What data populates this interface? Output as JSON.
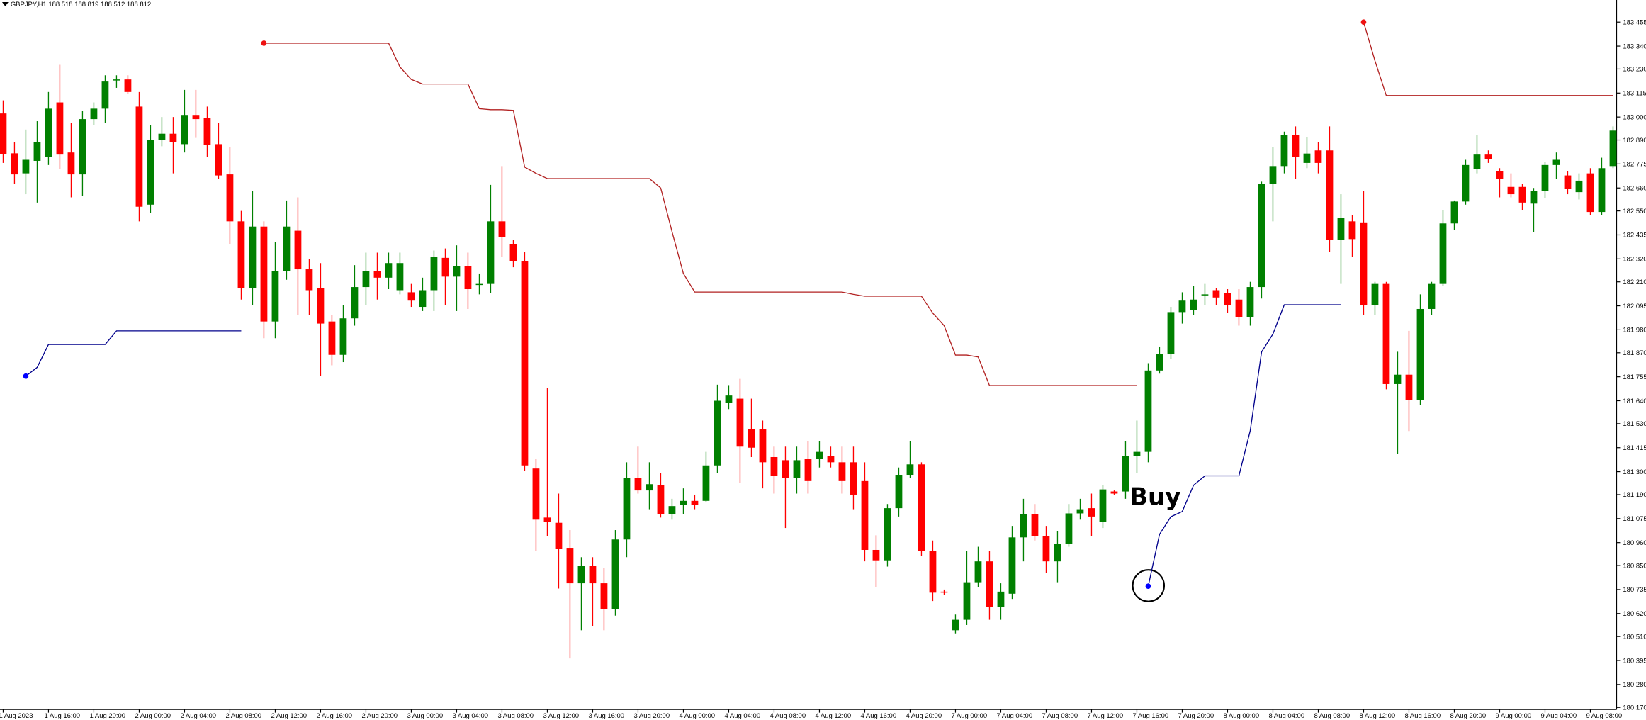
{
  "chart_data": {
    "type": "candlestick",
    "title": "GBPJPY,H1  188.518 188.819 188.512 188.812",
    "annotation": "Buy",
    "up_color": "#008000",
    "down_color": "#ff0000",
    "grid": false,
    "ylim": [
      180.16,
      183.561
    ],
    "yticks": [
      183.455,
      {
        "value": 183.34,
        "label": "183.340"
      },
      {
        "value": 183.23,
        "label": "183.230"
      },
      183.115,
      {
        "value": 183.0,
        "label": "183.000"
      },
      {
        "value": 182.89,
        "label": "182.890"
      },
      182.775,
      {
        "value": 182.66,
        "label": "182.660"
      },
      {
        "value": 182.55,
        "label": "182.550"
      },
      182.435,
      {
        "value": 182.32,
        "label": "182.320"
      },
      {
        "value": 182.21,
        "label": "182.210"
      },
      182.095,
      {
        "value": 181.98,
        "label": "181.980"
      },
      {
        "value": 181.87,
        "label": "181.870"
      },
      181.755,
      {
        "value": 181.64,
        "label": "181.640"
      },
      {
        "value": 181.53,
        "label": "181.530"
      },
      181.415,
      {
        "value": 181.3,
        "label": "181.300"
      },
      {
        "value": 181.19,
        "label": "181.190"
      },
      181.075,
      {
        "value": 180.96,
        "label": "180.960"
      },
      {
        "value": 180.85,
        "label": "180.850"
      },
      180.735,
      {
        "value": 180.62,
        "label": "180.620"
      },
      {
        "value": 180.51,
        "label": "180.510"
      },
      180.395,
      {
        "value": 180.28,
        "label": "180.280"
      },
      {
        "value": 180.17,
        "label": "180.170"
      }
    ],
    "categories": [
      "1 Aug 2023",
      null,
      null,
      null,
      "1 Aug 16:00",
      null,
      null,
      null,
      "1 Aug 20:00",
      null,
      null,
      null,
      "2 Aug 00:00",
      null,
      null,
      null,
      "2 Aug 04:00",
      null,
      null,
      null,
      "2 Aug 08:00",
      null,
      null,
      null,
      "2 Aug 12:00",
      null,
      null,
      null,
      "2 Aug 16:00",
      null,
      null,
      null,
      "2 Aug 20:00",
      null,
      null,
      null,
      "3 Aug 00:00",
      null,
      null,
      null,
      "3 Aug 04:00",
      null,
      null,
      null,
      "3 Aug 08:00",
      null,
      null,
      null,
      "3 Aug 12:00",
      null,
      null,
      null,
      "3 Aug 16:00",
      null,
      null,
      null,
      "3 Aug 20:00",
      null,
      null,
      null,
      "4 Aug 00:00",
      null,
      null,
      null,
      "4 Aug 04:00",
      null,
      null,
      null,
      "4 Aug 08:00",
      null,
      null,
      null,
      "4 Aug 12:00",
      null,
      null,
      null,
      "4 Aug 16:00",
      null,
      null,
      null,
      "4 Aug 20:00",
      null,
      null,
      null,
      "7 Aug 00:00",
      null,
      null,
      null,
      "7 Aug 04:00",
      null,
      null,
      null,
      "7 Aug 08:00",
      null,
      null,
      null,
      "7 Aug 12:00",
      null,
      null,
      null,
      "7 Aug 16:00",
      null,
      null,
      null,
      "7 Aug 20:00",
      null,
      null,
      null,
      "8 Aug 00:00",
      null,
      null,
      null,
      "8 Aug 04:00",
      null,
      null,
      null,
      "8 Aug 08:00",
      null,
      null,
      null,
      "8 Aug 12:00",
      null,
      null,
      null,
      "8 Aug 16:00",
      null,
      null,
      null,
      "8 Aug 20:00",
      null,
      null,
      null,
      "9 Aug 00:00",
      null,
      null,
      null,
      "9 Aug 04:00",
      null,
      null,
      null,
      "9 Aug 08:00",
      null,
      null
    ],
    "open": [
      183.017,
      182.826,
      182.73,
      182.79,
      182.81,
      183.07,
      182.83,
      182.725,
      182.99,
      183.04,
      183.175,
      183.18,
      183.05,
      182.58,
      182.89,
      182.92,
      182.87,
      183.01,
      182.995,
      182.87,
      182.725,
      182.5,
      182.18,
      182.475,
      182.02,
      182.26,
      182.455,
      182.27,
      182.18,
      182.02,
      181.86,
      182.035,
      182.185,
      182.26,
      182.23,
      182.17,
      182.16,
      182.09,
      182.17,
      182.325,
      182.235,
      182.285,
      182.195,
      182.2,
      182.5,
      182.39,
      182.31,
      181.315,
      181.08,
      181.055,
      180.935,
      180.765,
      180.85,
      180.765,
      180.64,
      180.975,
      181.27,
      181.21,
      181.235,
      181.095,
      181.14,
      181.16,
      181.16,
      181.33,
      181.63,
      181.65,
      181.505,
      181.505,
      181.37,
      181.355,
      181.27,
      181.36,
      181.36,
      181.375,
      181.345,
      181.345,
      181.255,
      180.925,
      180.875,
      181.125,
      181.285,
      181.335,
      180.92,
      180.725,
      180.54,
      180.59,
      180.77,
      180.87,
      180.65,
      180.715,
      180.985,
      181.095,
      180.99,
      180.87,
      180.955,
      181.1,
      181.125,
      181.06,
      181.205,
      181.205,
      181.375,
      181.395,
      181.785,
      181.865,
      182.065,
      182.075,
      182.15,
      182.17,
      182.155,
      182.125,
      182.04,
      182.185,
      182.68,
      182.765,
      182.915,
      182.78,
      182.84,
      182.84,
      182.41,
      182.5,
      182.495,
      182.1,
      182.2,
      181.72,
      181.765,
      181.645,
      182.08,
      182.2,
      182.49,
      182.595,
      182.75,
      182.82,
      182.74,
      182.665,
      182.665,
      182.585,
      182.645,
      182.77,
      182.72,
      182.64,
      182.73,
      182.545,
      182.765
    ],
    "high": [
      183.08,
      182.88,
      182.94,
      182.98,
      183.12,
      183.25,
      182.97,
      183.03,
      183.07,
      183.2,
      183.2,
      183.2,
      183.12,
      182.96,
      183,
      183,
      183.13,
      183.13,
      183.05,
      182.97,
      182.855,
      182.55,
      182.645,
      182.5,
      182.4,
      182.6,
      182.615,
      182.32,
      182.3,
      182.05,
      182.1,
      182.29,
      182.35,
      182.35,
      182.35,
      182.35,
      182.2,
      182.23,
      182.36,
      182.37,
      182.385,
      182.35,
      182.25,
      182.675,
      182.765,
      182.41,
      182.355,
      181.36,
      181.7,
      181.195,
      181.02,
      180.89,
      180.89,
      180.84,
      181.02,
      181.345,
      181.42,
      181.345,
      181.295,
      181.17,
      181.22,
      181.19,
      181.395,
      181.717,
      181.715,
      181.745,
      181.65,
      181.545,
      181.42,
      181.42,
      181.42,
      181.445,
      181.445,
      181.42,
      181.42,
      181.42,
      181.345,
      180.995,
      181.145,
      181.32,
      181.445,
      181.345,
      180.97,
      180.735,
      180.615,
      180.92,
      180.94,
      180.92,
      180.765,
      181.04,
      181.17,
      181.145,
      181.04,
      181.015,
      181.145,
      181.17,
      181.195,
      181.235,
      181.21,
      181.445,
      181.545,
      181.82,
      181.9,
      182.09,
      182.16,
      182.19,
      182.2,
      182.18,
      182.175,
      182.175,
      182.21,
      182.69,
      182.855,
      182.93,
      182.955,
      182.905,
      182.88,
      182.955,
      182.63,
      182.53,
      182.645,
      182.21,
      182.21,
      181.875,
      181.975,
      182.15,
      182.21,
      182.555,
      182.6,
      182.795,
      182.915,
      182.84,
      182.755,
      182.73,
      182.68,
      182.66,
      182.785,
      182.83,
      182.74,
      182.73,
      182.755,
      182.805,
      182.955
    ],
    "low": [
      182.78,
      182.68,
      182.63,
      182.59,
      182.77,
      182.75,
      182.615,
      182.62,
      182.96,
      182.97,
      183.14,
      183.11,
      182.5,
      182.54,
      182.86,
      182.73,
      182.83,
      182.9,
      182.81,
      182.705,
      182.39,
      182.125,
      182.1,
      181.94,
      181.94,
      182.22,
      182.05,
      182.05,
      181.76,
      181.81,
      181.825,
      182,
      182.1,
      182.125,
      182.175,
      182.15,
      182.09,
      182.07,
      182.07,
      182.1,
      182.07,
      182.08,
      182.15,
      182.155,
      182.33,
      182.28,
      181.305,
      180.92,
      180.99,
      180.74,
      180.405,
      180.54,
      180.56,
      180.54,
      180.61,
      180.89,
      181.195,
      181.12,
      181.08,
      181.07,
      181.095,
      181.12,
      181.155,
      181.295,
      181.6,
      181.245,
      181.37,
      181.22,
      181.195,
      181.03,
      181.195,
      181.195,
      181.32,
      181.32,
      181.195,
      181.12,
      180.87,
      180.745,
      180.845,
      181.085,
      181.27,
      180.895,
      180.68,
      180.71,
      180.525,
      180.565,
      180.745,
      180.59,
      180.59,
      180.69,
      180.87,
      180.97,
      180.815,
      180.77,
      180.94,
      181.07,
      180.99,
      181.03,
      181.19,
      181.17,
      181.295,
      181.345,
      181.77,
      181.84,
      182.01,
      182.05,
      182.1,
      182.1,
      182.06,
      182,
      182,
      182.13,
      182.5,
      182.73,
      182.705,
      182.755,
      182.73,
      182.355,
      182.2,
      182.33,
      182.05,
      182.05,
      181.695,
      181.385,
      181.495,
      181.62,
      182.05,
      182.19,
      182.46,
      182.58,
      182.73,
      182.78,
      182.615,
      182.615,
      182.555,
      182.45,
      182.61,
      182.705,
      182.63,
      182.605,
      182.53,
      182.53,
      182.755
    ],
    "close": [
      182.821,
      182.725,
      182.795,
      182.88,
      183.04,
      182.82,
      182.725,
      182.99,
      183.04,
      183.17,
      183.18,
      183.12,
      182.57,
      182.89,
      182.92,
      182.88,
      183.01,
      182.99,
      182.865,
      182.72,
      182.5,
      182.18,
      182.475,
      182.02,
      182.26,
      182.475,
      182.27,
      182.17,
      182.01,
      181.86,
      182.035,
      182.185,
      182.26,
      182.23,
      182.3,
      182.3,
      182.12,
      182.17,
      182.33,
      182.235,
      182.285,
      182.175,
      182.2,
      182.5,
      182.425,
      182.31,
      181.33,
      181.07,
      181.06,
      180.93,
      180.765,
      180.85,
      180.765,
      180.64,
      180.975,
      181.27,
      181.21,
      181.24,
      181.095,
      181.135,
      181.16,
      181.14,
      181.33,
      181.64,
      181.665,
      181.42,
      181.415,
      181.345,
      181.28,
      181.27,
      181.355,
      181.255,
      181.395,
      181.345,
      181.255,
      181.19,
      180.925,
      180.875,
      181.125,
      181.285,
      181.335,
      180.92,
      180.72,
      180.72,
      180.59,
      180.77,
      180.87,
      180.65,
      180.725,
      180.985,
      181.095,
      180.99,
      180.87,
      180.955,
      181.1,
      181.12,
      181.085,
      181.215,
      181.195,
      181.375,
      181.395,
      181.785,
      181.865,
      182.065,
      182.12,
      182.125,
      182.15,
      182.135,
      182.1,
      182.04,
      182.185,
      182.68,
      182.765,
      182.915,
      182.81,
      182.825,
      182.78,
      182.41,
      182.515,
      182.415,
      182.1,
      182.2,
      181.72,
      181.765,
      181.645,
      182.08,
      182.2,
      182.49,
      182.595,
      182.77,
      182.82,
      182.8,
      182.705,
      182.63,
      182.59,
      182.645,
      182.77,
      182.795,
      182.655,
      182.695,
      182.545,
      182.755,
      182.935
    ],
    "series": [
      {
        "color": "#b22222",
        "values": [
          null,
          null,
          null,
          null,
          null,
          null,
          null,
          null,
          null,
          null,
          null,
          null,
          null,
          null,
          null,
          null,
          null,
          null,
          null,
          null,
          null,
          null,
          null,
          183.354,
          183.354,
          183.354,
          183.354,
          183.354,
          183.354,
          183.354,
          183.354,
          183.354,
          183.354,
          183.354,
          183.354,
          183.24,
          183.18,
          183.158,
          183.158,
          183.158,
          183.158,
          183.158,
          183.04,
          183.035,
          183.035,
          183.032,
          182.76,
          182.73,
          182.705,
          182.705,
          182.705,
          182.705,
          182.705,
          182.705,
          182.705,
          182.705,
          182.705,
          182.705,
          182.66,
          182.45,
          182.25,
          182.161,
          182.161,
          182.161,
          182.161,
          182.161,
          182.161,
          182.161,
          182.161,
          182.161,
          182.161,
          182.161,
          182.161,
          182.161,
          182.161,
          182.15,
          182.141,
          182.141,
          182.141,
          182.141,
          182.141,
          182.141,
          182.06,
          182.0,
          181.859,
          181.859,
          181.85,
          181.713,
          181.713,
          181.713,
          181.713,
          181.713,
          181.713,
          181.713,
          181.713,
          181.713,
          181.713,
          181.713,
          181.713,
          181.713,
          181.713,
          null,
          null,
          null,
          null,
          null,
          null,
          null,
          null,
          null,
          null,
          null,
          null,
          null,
          null,
          null,
          null,
          null,
          null,
          null,
          183.455,
          183.27,
          183.103,
          183.103,
          183.103,
          183.103,
          183.103,
          183.103,
          183.103,
          183.103,
          183.103,
          183.103,
          183.103,
          183.103,
          183.103,
          183.103,
          183.103,
          183.103,
          183.103,
          183.103,
          183.103,
          183.103,
          183.103
        ]
      },
      {
        "color": "#00008b",
        "values": [
          null,
          null,
          181.758,
          181.8,
          181.91,
          181.91,
          181.91,
          181.91,
          181.91,
          181.91,
          181.975,
          181.975,
          181.975,
          181.975,
          181.975,
          181.975,
          181.975,
          181.975,
          181.975,
          181.975,
          181.975,
          181.975,
          null,
          null,
          null,
          null,
          null,
          null,
          null,
          null,
          null,
          null,
          null,
          null,
          null,
          null,
          null,
          null,
          null,
          null,
          null,
          null,
          null,
          null,
          null,
          null,
          null,
          null,
          null,
          null,
          null,
          null,
          null,
          null,
          null,
          null,
          null,
          null,
          null,
          null,
          null,
          null,
          null,
          null,
          null,
          null,
          null,
          null,
          null,
          null,
          null,
          null,
          null,
          null,
          null,
          null,
          null,
          null,
          null,
          null,
          null,
          null,
          null,
          null,
          null,
          null,
          null,
          null,
          null,
          null,
          null,
          null,
          null,
          null,
          null,
          null,
          null,
          null,
          null,
          null,
          null,
          180.751,
          181.0,
          181.084,
          181.109,
          181.235,
          181.28,
          181.28,
          181.28,
          181.28,
          181.497,
          181.874,
          181.96,
          182.1,
          182.1,
          182.1,
          182.1,
          182.1,
          182.1,
          null,
          null,
          null,
          null,
          null,
          null,
          null,
          null,
          null,
          null,
          null,
          null,
          null,
          null,
          null,
          null,
          null,
          null,
          null,
          null,
          null,
          null,
          null,
          null
        ]
      }
    ]
  }
}
